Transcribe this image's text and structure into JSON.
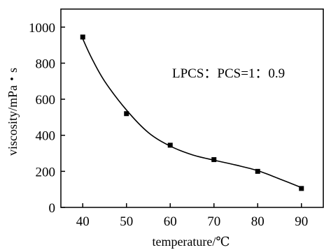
{
  "chart_data": {
    "type": "scatter",
    "title": "",
    "xlabel": "temperature/℃",
    "ylabel": "viscosity/mPa・s",
    "xlim": [
      35,
      95
    ],
    "ylim": [
      0,
      1100
    ],
    "xticks": [
      40,
      50,
      60,
      70,
      80,
      90
    ],
    "yticks": [
      0,
      200,
      400,
      600,
      800,
      1000
    ],
    "grid": false,
    "legend": "none",
    "annotation": "LPCS：PCS=1：0.9",
    "series": [
      {
        "marker": "square",
        "color": "#000000",
        "x": [
          40,
          50,
          60,
          70,
          80,
          90
        ],
        "y": [
          945,
          520,
          345,
          265,
          200,
          105
        ]
      }
    ],
    "fit_curve": {
      "type": "smooth",
      "color": "#000000",
      "x": [
        40,
        42,
        45,
        50,
        55,
        60,
        65,
        70,
        75,
        80,
        85,
        90
      ],
      "y": [
        935,
        830,
        700,
        540,
        415,
        340,
        292,
        262,
        235,
        204,
        158,
        110
      ]
    }
  }
}
